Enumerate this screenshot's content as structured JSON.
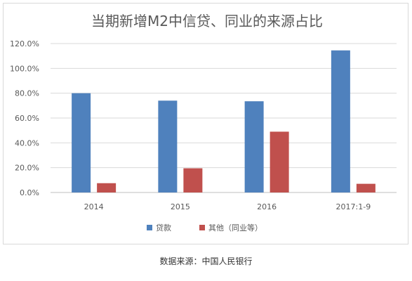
{
  "chart_data": {
    "type": "bar",
    "title": "当期新增M2中信贷、同业的来源占比",
    "categories": [
      "2014",
      "2015",
      "2016",
      "2017:1-9"
    ],
    "series": [
      {
        "name": "贷款",
        "values": [
          80.0,
          74.0,
          73.5,
          114.5
        ],
        "color": "#4f81bd"
      },
      {
        "name": "其他（同业等）",
        "values": [
          7.5,
          19.5,
          49.0,
          7.0
        ],
        "color": "#c0504d"
      }
    ],
    "yticks": [
      "0.0%",
      "20.0%",
      "40.0%",
      "60.0%",
      "80.0%",
      "100.0%",
      "120.0%"
    ],
    "ylim": [
      0,
      120
    ],
    "grid": true,
    "legend_position": "bottom"
  },
  "source_note": "数据来源：中国人民银行"
}
